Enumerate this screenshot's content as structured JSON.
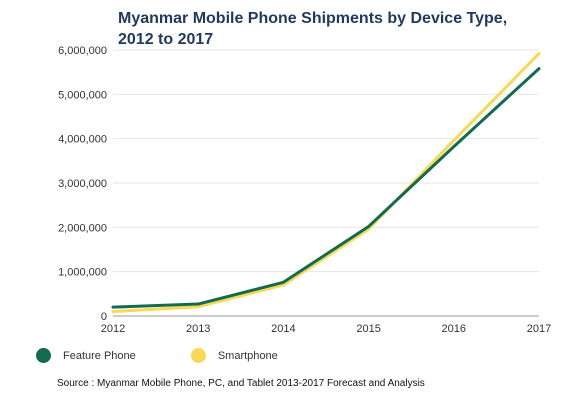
{
  "chart_data": {
    "type": "line",
    "title_lines": [
      "Myanmar Mobile Phone Shipments by Device Type,",
      "2012 to 2017"
    ],
    "x": [
      "2012",
      "2013",
      "2014",
      "2015",
      "2016",
      "2017"
    ],
    "series": [
      {
        "name": "Feature Phone",
        "color": "#126b4e",
        "values": [
          200000,
          270000,
          760000,
          2020000,
          3820000,
          5580000
        ]
      },
      {
        "name": "Smartphone",
        "color": "#f7d954",
        "values": [
          100000,
          210000,
          700000,
          1960000,
          3960000,
          5920000
        ]
      }
    ],
    "ylim": [
      0,
      6000000
    ],
    "yticks": [
      "6,000,000",
      "5,000,000",
      "4,000,000",
      "3,000,000",
      "2,000,000",
      "1,000,000",
      "0"
    ],
    "ytick_values": [
      6000000,
      5000000,
      4000000,
      3000000,
      2000000,
      1000000,
      0
    ],
    "grid": "horizontal",
    "legend_position": "bottom-left",
    "source": "Source : Myanmar Mobile Phone, PC, and Tablet 2013-2017 Forecast and Analysis"
  }
}
